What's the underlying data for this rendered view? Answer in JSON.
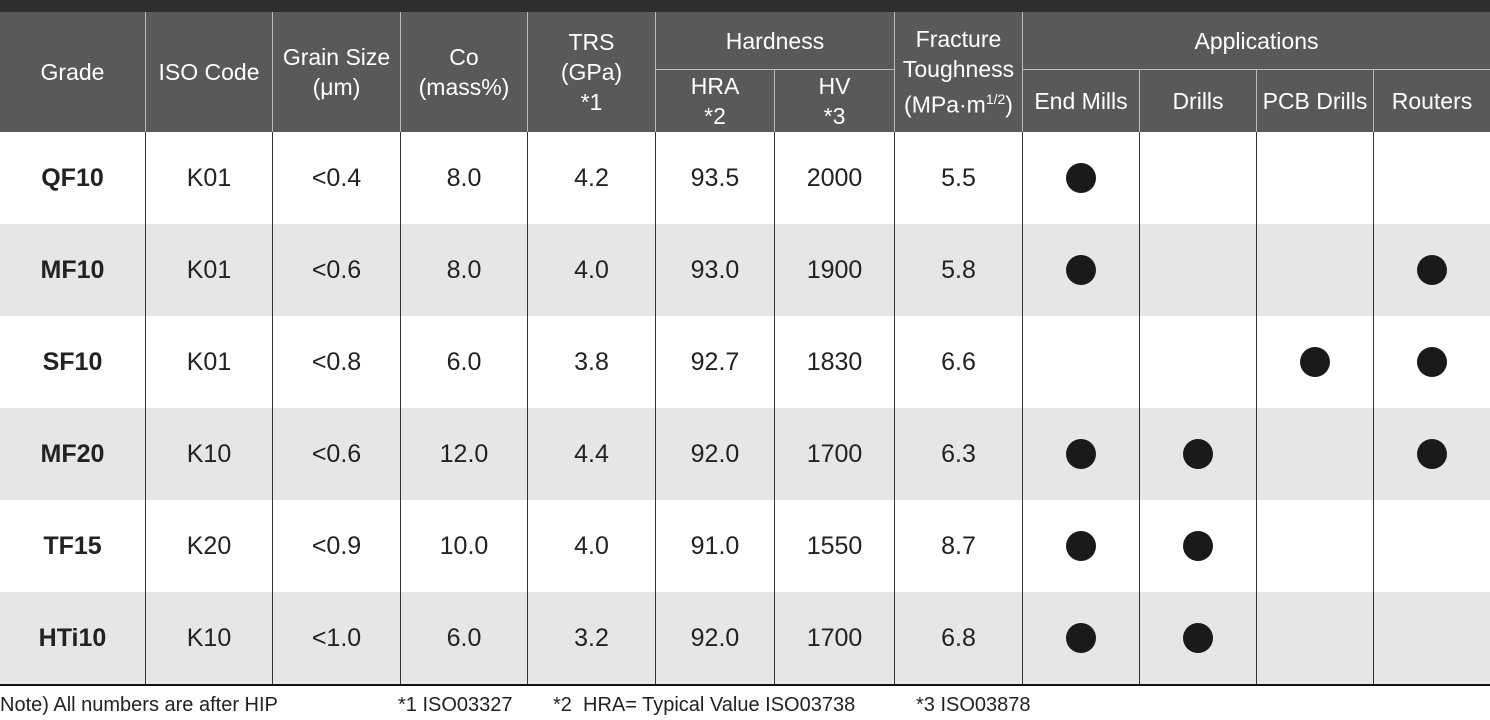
{
  "header": {
    "columns": [
      {
        "lines": [
          "Grade"
        ]
      },
      {
        "lines": [
          "ISO Code"
        ]
      },
      {
        "lines": [
          "Grain Size",
          "(μm)"
        ]
      },
      {
        "lines": [
          "Co",
          "(mass%)"
        ]
      },
      {
        "lines": [
          "TRS",
          "(GPa)",
          "*1"
        ]
      },
      {
        "group": "Hardness",
        "sub": [
          {
            "lines": [
              "HRA",
              "*2"
            ]
          },
          {
            "lines": [
              "HV",
              "*3"
            ]
          }
        ]
      },
      {
        "lines": [
          "Fracture",
          "Toughness"
        ],
        "unit": {
          "base": "(MPa·m",
          "sup": "1/2",
          "close": ")"
        }
      },
      {
        "group": "Applications",
        "sub": [
          {
            "lines": [
              "End Mills"
            ]
          },
          {
            "lines": [
              "Drills"
            ]
          },
          {
            "lines": [
              "PCB Drills"
            ]
          },
          {
            "lines": [
              "Routers"
            ]
          }
        ]
      }
    ]
  },
  "table": {
    "rows": [
      {
        "grade": "QF10",
        "cells": [
          "K01",
          "<0.4",
          "8.0",
          "4.2",
          "93.5",
          "2000",
          "5.5"
        ],
        "applications": [
          true,
          false,
          false,
          false
        ]
      },
      {
        "grade": "MF10",
        "cells": [
          "K01",
          "<0.6",
          "8.0",
          "4.0",
          "93.0",
          "1900",
          "5.8"
        ],
        "applications": [
          true,
          false,
          false,
          true
        ]
      },
      {
        "grade": "SF10",
        "cells": [
          "K01",
          "<0.8",
          "6.0",
          "3.8",
          "92.7",
          "1830",
          "6.6"
        ],
        "applications": [
          false,
          false,
          true,
          true
        ]
      },
      {
        "grade": "MF20",
        "cells": [
          "K10",
          "<0.6",
          "12.0",
          "4.4",
          "92.0",
          "1700",
          "6.3"
        ],
        "applications": [
          true,
          true,
          false,
          true
        ]
      },
      {
        "grade": "TF15",
        "cells": [
          "K20",
          "<0.9",
          "10.0",
          "4.0",
          "91.0",
          "1550",
          "8.7"
        ],
        "applications": [
          true,
          true,
          false,
          false
        ]
      },
      {
        "grade": "HTi10",
        "cells": [
          "K10",
          "<1.0",
          "6.0",
          "3.2",
          "92.0",
          "1700",
          "6.8"
        ],
        "applications": [
          true,
          true,
          false,
          false
        ]
      }
    ]
  },
  "footnotes": [
    "Note) All numbers are after HIP",
    "*1 ISO03327",
    "*2  HRA= Typical Value ISO03738",
    "*3 ISO03878"
  ]
}
